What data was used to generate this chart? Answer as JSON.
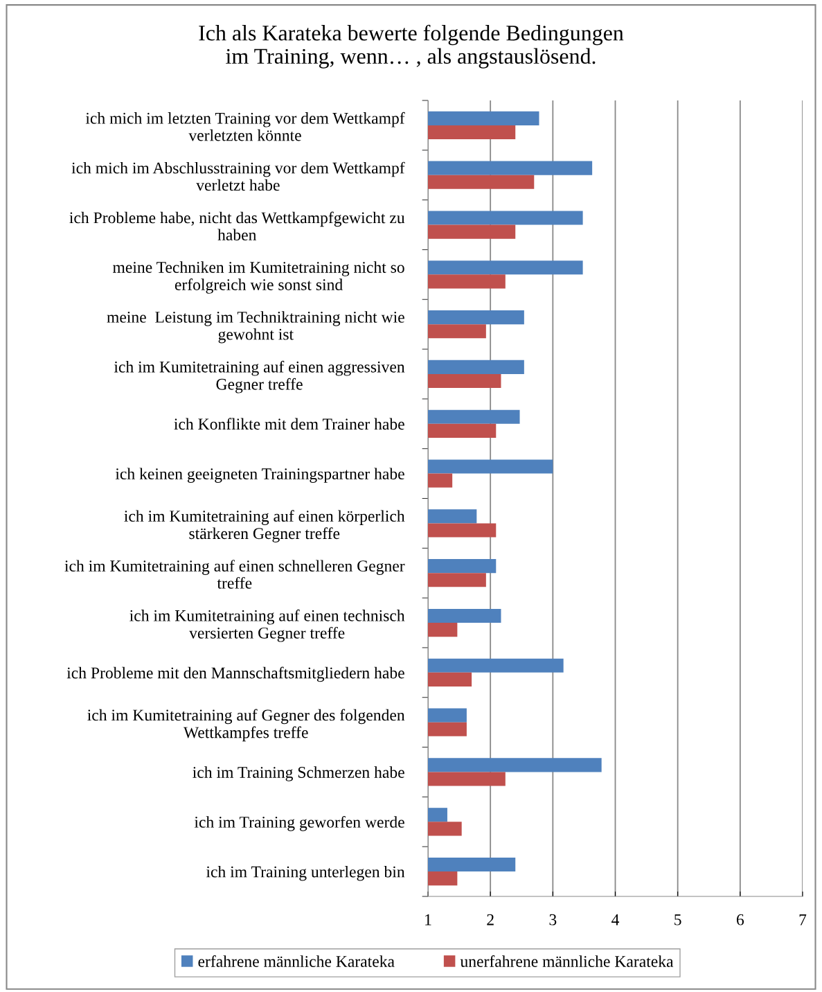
{
  "chart_data": {
    "type": "bar",
    "orientation": "horizontal",
    "title": "Ich als Karateka bewerte folgende Bedingungen\nim Training, wenn… , als angstauslösend.",
    "categories": [
      "ich mich im letzten Training vor dem Wettkampf\nverletzten könnte",
      "ich mich im Abschlusstraining vor dem Wettkampf\nverletzt habe",
      "ich Probleme habe, nicht das Wettkampfgewicht zu\nhaben",
      "meine Techniken im Kumitetraining nicht so\nerfolgreich wie sonst sind",
      "meine  Leistung im Techniktraining nicht wie\ngewohnt ist",
      "ich im Kumitetraining auf einen aggressiven\nGegner treffe",
      "ich Konflikte mit dem Trainer habe",
      "ich keinen geeigneten Trainingspartner habe",
      "ich im Kumitetraining auf einen körperlich\nstärkeren Gegner treffe",
      "ich im Kumitetraining auf einen schnelleren Gegner\ntreffe",
      "ich im Kumitetraining auf einen technisch\nversierten Gegner treffe",
      "ich Probleme mit den Mannschaftsmitgliedern habe",
      "ich im Kumitetraining auf Gegner des folgenden\nWettkampfes treffe",
      "ich im Training Schmerzen habe",
      "ich im Training geworfen werde",
      "ich im Training unterlegen bin"
    ],
    "series": [
      {
        "name": "erfahrene männliche Karateka",
        "color": "#4f81bd",
        "values": [
          2.78,
          3.63,
          3.48,
          3.48,
          2.54,
          2.54,
          2.47,
          3.0,
          1.78,
          2.09,
          2.17,
          3.17,
          1.62,
          3.78,
          1.31,
          2.4
        ]
      },
      {
        "name": "unerfahrene männliche Karateka",
        "color": "#c0504d",
        "values": [
          2.4,
          2.7,
          2.4,
          2.24,
          1.93,
          2.17,
          2.09,
          1.39,
          2.09,
          1.93,
          1.47,
          1.7,
          1.62,
          2.24,
          1.54,
          1.47
        ]
      }
    ],
    "xlim": [
      1,
      7
    ],
    "xticks": [
      1,
      2,
      3,
      4,
      5,
      6,
      7
    ],
    "grid": "x",
    "legend": "bottom"
  }
}
